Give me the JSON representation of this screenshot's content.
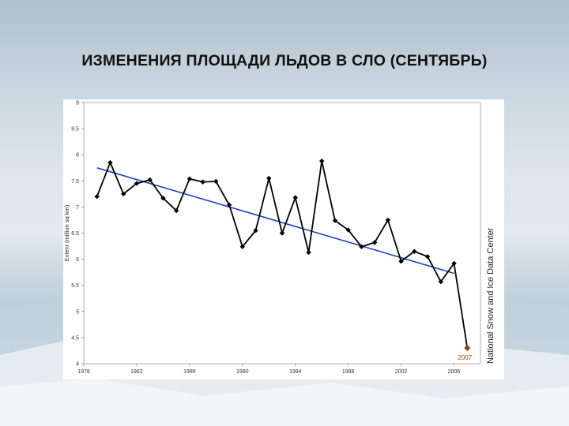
{
  "slide": {
    "title": "ИЗМЕНЕНИЯ ПЛОЩАДИ ЛЬДОВ В СЛО (СЕНТЯБРЬ)"
  },
  "chart_data": {
    "type": "line",
    "title": "",
    "xlabel": "",
    "ylabel": "Extent (million sq km)",
    "source_credit": "National Snow and Ice Data Center",
    "x": [
      1979,
      1980,
      1981,
      1982,
      1983,
      1984,
      1985,
      1986,
      1987,
      1988,
      1989,
      1990,
      1991,
      1992,
      1993,
      1994,
      1995,
      1996,
      1997,
      1998,
      1999,
      2000,
      2001,
      2002,
      2003,
      2004,
      2005,
      2006,
      2007
    ],
    "series": [
      {
        "values": [
          7.2,
          7.85,
          7.25,
          7.45,
          7.52,
          7.17,
          6.93,
          7.54,
          7.48,
          7.49,
          7.04,
          6.24,
          6.55,
          7.55,
          6.5,
          7.18,
          6.13,
          7.88,
          6.74,
          6.56,
          6.24,
          6.32,
          6.75,
          5.96,
          6.15,
          6.05,
          5.57,
          5.92,
          4.3
        ],
        "color": "#000000",
        "marker": "diamond"
      }
    ],
    "trendline": {
      "x": [
        1979,
        2006
      ],
      "y": [
        7.75,
        5.73
      ],
      "color": "#1f3fbf"
    },
    "highlight_point": {
      "x": 2007,
      "y": 4.3,
      "label": "2007",
      "color": "#8b4513"
    },
    "xlim": [
      1978,
      2008
    ],
    "ylim": [
      4,
      9
    ],
    "x_ticks": [
      "1978",
      "1982",
      "1986",
      "1990",
      "1994",
      "1998",
      "2002",
      "2006"
    ],
    "y_ticks": [
      "4",
      "4.5",
      "5",
      "5.5",
      "6",
      "6.5",
      "7",
      "7.5",
      "8",
      "8.5",
      "9"
    ],
    "grid": false,
    "legend": "none"
  }
}
